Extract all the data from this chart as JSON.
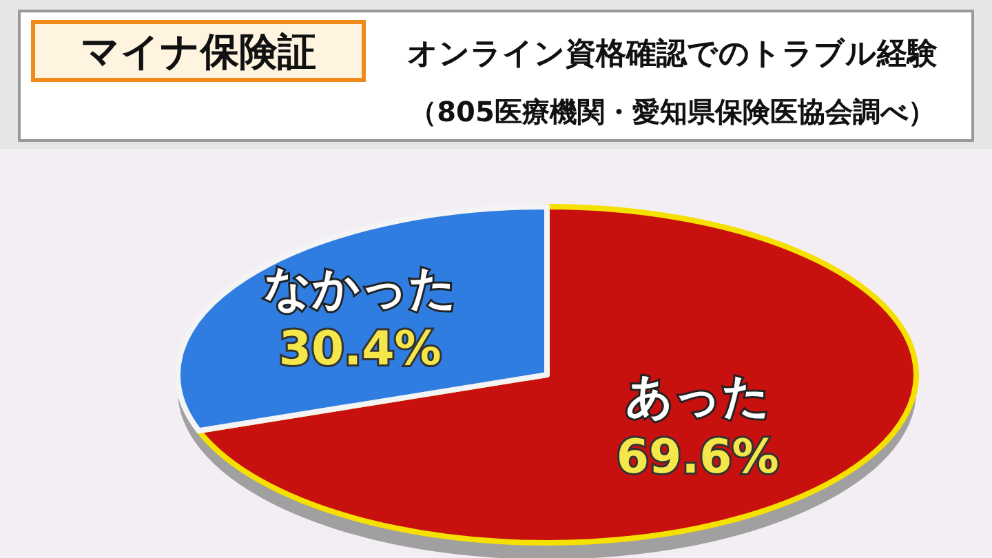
{
  "chart_data": {
    "type": "pie",
    "title": "オンライン資格確認でのトラブル経験",
    "subtitle": "（805医療機関・愛知県保険医協会調べ）",
    "annotations": [
      "マイナ保険証"
    ],
    "categories": [
      "あった",
      "なかった"
    ],
    "values": [
      69.6,
      30.4
    ],
    "colors": [
      "#c8100f",
      "#2f7de0"
    ],
    "value_labels": [
      "69.6%",
      "30.4%"
    ]
  }
}
